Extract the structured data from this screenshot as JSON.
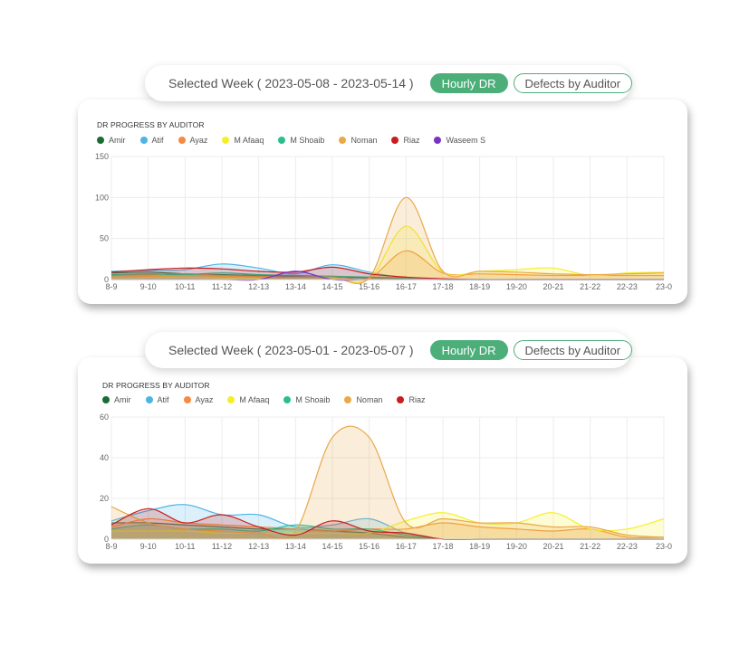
{
  "panels": [
    {
      "week_label": "Selected Week ( 2023-05-08 - 2023-05-14 )",
      "hourly_btn": "Hourly DR",
      "defects_btn": "Defects by Auditor",
      "chart_title": "DR PROGRESS BY AUDITOR"
    },
    {
      "week_label": "Selected Week ( 2023-05-01 - 2023-05-07 )",
      "hourly_btn": "Hourly DR",
      "defects_btn": "Defects by Auditor",
      "chart_title": "DR PROGRESS BY AUDITOR"
    }
  ],
  "chart_data": [
    {
      "type": "area",
      "title": "DR PROGRESS BY AUDITOR",
      "categories": [
        "8-9",
        "9-10",
        "10-11",
        "11-12",
        "12-13",
        "13-14",
        "14-15",
        "15-16",
        "16-17",
        "17-18",
        "18-19",
        "19-20",
        "20-21",
        "21-22",
        "22-23",
        "23-0"
      ],
      "y_ticks": [
        0,
        50,
        100,
        150
      ],
      "ylim": [
        0,
        150
      ],
      "legend_position": "top-left",
      "series": [
        {
          "name": "Amir",
          "color": "#1a6b36",
          "values": [
            8,
            9,
            7,
            6,
            5,
            4,
            3,
            2,
            1,
            0,
            0,
            0,
            0,
            0,
            0,
            0
          ]
        },
        {
          "name": "Atif",
          "color": "#4db4e4",
          "values": [
            10,
            11,
            12,
            19,
            14,
            7,
            18,
            9,
            2,
            0,
            0,
            0,
            0,
            0,
            0,
            0
          ]
        },
        {
          "name": "Ayaz",
          "color": "#f58a42",
          "values": [
            5,
            6,
            7,
            5,
            4,
            3,
            4,
            2,
            35,
            8,
            7,
            6,
            5,
            5,
            5,
            5
          ]
        },
        {
          "name": "M Afaaq",
          "color": "#f5ef28",
          "values": [
            2,
            3,
            3,
            2,
            2,
            2,
            2,
            1,
            65,
            9,
            10,
            12,
            14,
            5,
            8,
            9
          ]
        },
        {
          "name": "M Shoaib",
          "color": "#2cbf8e",
          "values": [
            6,
            7,
            6,
            8,
            6,
            5,
            4,
            3,
            2,
            0,
            0,
            0,
            0,
            0,
            0,
            0
          ]
        },
        {
          "name": "Noman",
          "color": "#e8a94a",
          "values": [
            3,
            4,
            5,
            4,
            3,
            3,
            3,
            2,
            100,
            10,
            10,
            9,
            7,
            6,
            7,
            8
          ]
        },
        {
          "name": "Riaz",
          "color": "#c81e1e",
          "values": [
            9,
            12,
            14,
            13,
            10,
            9,
            15,
            7,
            3,
            1,
            0,
            0,
            0,
            0,
            0,
            0
          ]
        },
        {
          "name": "Waseem S",
          "color": "#7b32c8",
          "values": [
            0,
            0,
            0,
            0,
            0,
            10,
            0,
            0,
            0,
            0,
            0,
            0,
            0,
            0,
            0,
            0
          ]
        }
      ]
    },
    {
      "type": "area",
      "title": "DR PROGRESS BY AUDITOR",
      "categories": [
        "8-9",
        "9-10",
        "10-11",
        "11-12",
        "12-13",
        "13-14",
        "14-15",
        "15-16",
        "16-17",
        "17-18",
        "18-19",
        "19-20",
        "20-21",
        "21-22",
        "22-23",
        "23-0"
      ],
      "y_ticks": [
        0,
        20,
        40,
        60
      ],
      "ylim": [
        0,
        60
      ],
      "legend_position": "top-left",
      "series": [
        {
          "name": "Amir",
          "color": "#1a6b36",
          "values": [
            8,
            8,
            7,
            6,
            5,
            5,
            4,
            3,
            1,
            0,
            0,
            0,
            0,
            0,
            0,
            0
          ]
        },
        {
          "name": "Atif",
          "color": "#4db4e4",
          "values": [
            9,
            14,
            17,
            12,
            12,
            6,
            7,
            10,
            3,
            0,
            0,
            0,
            0,
            0,
            0,
            0
          ]
        },
        {
          "name": "Ayaz",
          "color": "#f58a42",
          "values": [
            6,
            10,
            8,
            7,
            6,
            5,
            4,
            5,
            5,
            8,
            6,
            5,
            4,
            5,
            1,
            1
          ]
        },
        {
          "name": "M Afaaq",
          "color": "#f5ef28",
          "values": [
            4,
            4,
            4,
            3,
            3,
            3,
            3,
            3,
            9,
            13,
            8,
            8,
            13,
            5,
            5,
            10
          ]
        },
        {
          "name": "M Shoaib",
          "color": "#2cbf8e",
          "values": [
            5,
            7,
            5,
            5,
            4,
            7,
            5,
            5,
            2,
            0,
            0,
            0,
            0,
            0,
            0,
            0
          ]
        },
        {
          "name": "Noman",
          "color": "#e8a94a",
          "values": [
            16,
            8,
            5,
            4,
            3,
            4,
            50,
            50,
            8,
            10,
            8,
            8,
            6,
            6,
            2,
            1
          ]
        },
        {
          "name": "Riaz",
          "color": "#c81e1e",
          "values": [
            7,
            15,
            8,
            12,
            6,
            2,
            9,
            4,
            3,
            0,
            0,
            0,
            0,
            0,
            0,
            0
          ]
        }
      ]
    }
  ]
}
